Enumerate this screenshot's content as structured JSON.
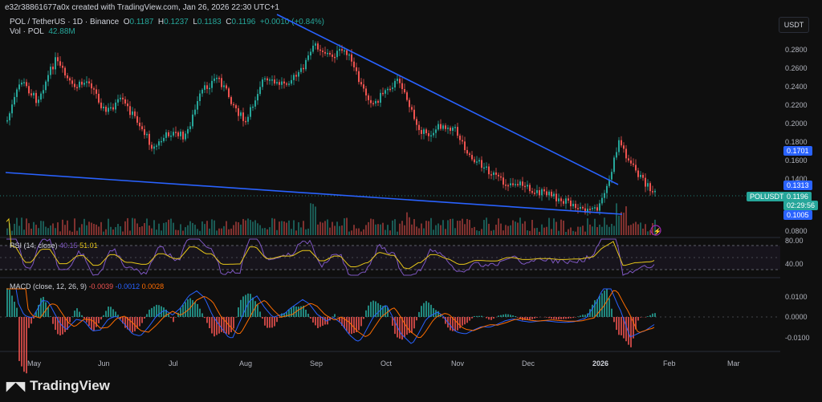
{
  "header": {
    "created_by": "e32r38861677a0x created with TradingView.com, Jan 26, 2026 22:30 UTC+1"
  },
  "symbol": {
    "name": "POL / TetherUS · 1D · Binance",
    "o_label": "O",
    "o": "0.1187",
    "h_label": "H",
    "h": "0.1237",
    "l_label": "L",
    "l": "0.1183",
    "c_label": "C",
    "c": "0.1196",
    "change": "+0.0010 (+0.84%)"
  },
  "volume": {
    "label": "Vol · POL",
    "value": "42.88M"
  },
  "currency_button": "USDT",
  "price_axis": [
    "0.2800",
    "0.2600",
    "0.2400",
    "0.2200",
    "0.2000",
    "0.1800",
    "0.1600",
    "0.1400",
    "0.0800"
  ],
  "tags": {
    "t1701": "0.1701",
    "t1313": "0.1313",
    "pair": "POLUSDT",
    "price": "0.1196",
    "countdown": "02:29:56",
    "t1005": "0.1005"
  },
  "rsi": {
    "label": "RSI (14, close)",
    "v1": "40.15",
    "v2": "51.01",
    "axis_top": "80.00",
    "axis_bottom": "40.00"
  },
  "macd": {
    "label": "MACD (close, 12, 26, 9)",
    "v1": "-0.0039",
    "v2": "-0.0012",
    "v3": "0.0028",
    "axis": [
      "0.0100",
      "0.0000",
      "-0.0100"
    ]
  },
  "time_axis": [
    "May",
    "Jun",
    "Jul",
    "Aug",
    "Sep",
    "Oct",
    "Nov",
    "Dec",
    "2026",
    "Feb",
    "Mar"
  ],
  "colors": {
    "up": "#26a69a",
    "down": "#ef5350",
    "trend": "#2962ff",
    "rsi": "#7e57c2",
    "signal": "#e6c619",
    "macd_line": "#2962ff",
    "signal_line": "#ff6d00"
  },
  "brand": "TradingView"
}
